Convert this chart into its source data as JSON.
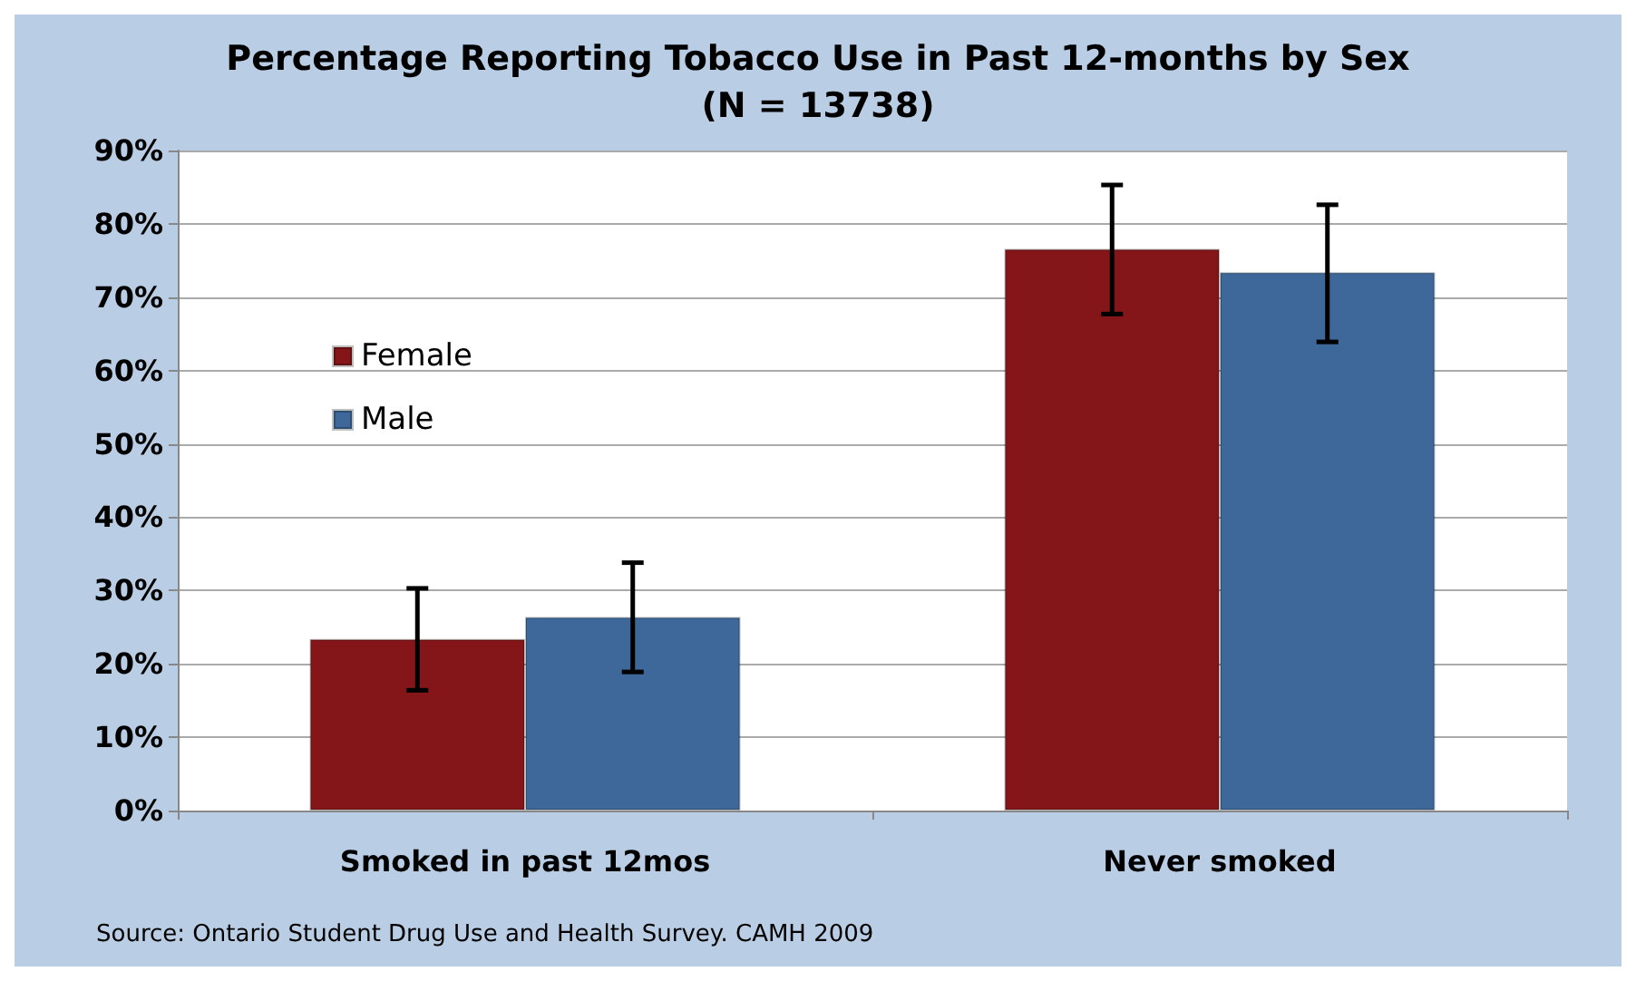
{
  "chart_data": {
    "type": "bar",
    "title": "Percentage Reporting Tobacco Use in Past 12-months by Sex",
    "subtitle": "(N = 13738)",
    "categories": [
      "Smoked in past 12mos",
      "Never smoked"
    ],
    "series": [
      {
        "name": "Female",
        "color": "#841619",
        "values": [
          23.4,
          76.6
        ],
        "errors": [
          [
            16.4,
            30.3
          ],
          [
            67.7,
            85.3
          ]
        ]
      },
      {
        "name": "Male",
        "color": "#3d6899",
        "values": [
          26.4,
          73.4
        ],
        "errors": [
          [
            18.9,
            33.8
          ],
          [
            63.9,
            82.6
          ]
        ]
      }
    ],
    "ylim": [
      0,
      90
    ],
    "yticks": [
      {
        "value": 0,
        "label": "0%"
      },
      {
        "value": 10,
        "label": "10%"
      },
      {
        "value": 20,
        "label": "20%"
      },
      {
        "value": 30,
        "label": "30%"
      },
      {
        "value": 40,
        "label": "40%"
      },
      {
        "value": 50,
        "label": "50%"
      },
      {
        "value": 60,
        "label": "60%"
      },
      {
        "value": 70,
        "label": "70%"
      },
      {
        "value": 80,
        "label": "80%"
      },
      {
        "value": 90,
        "label": "90%"
      }
    ],
    "grid": "y",
    "legend": "left",
    "annotations": [
      "Source: Ontario Student Drug Use and Health Survey. CAMH 2009"
    ]
  }
}
